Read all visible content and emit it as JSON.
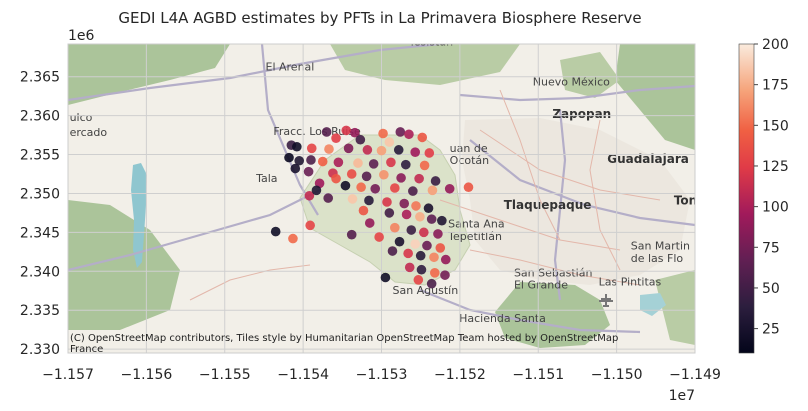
{
  "chart_data": {
    "type": "scatter",
    "title": "GEDI L4A AGBD estimates by PFTs in La Primavera Biosphere Reserve",
    "xlabel": "",
    "ylabel": "",
    "xlim": [
      -11570000,
      -11490000
    ],
    "ylim": [
      2329500,
      2369200
    ],
    "x_ticks": [
      -11570000,
      -11560000,
      -11550000,
      -11540000,
      -11530000,
      -11520000,
      -11510000,
      -11500000,
      -11490000
    ],
    "x_tick_labels": [
      "−1.157",
      "−1.156",
      "−1.155",
      "−1.154",
      "−1.153",
      "−1.152",
      "−1.151",
      "−1.150",
      "−1.149"
    ],
    "x_offset_label": "1e7",
    "y_ticks": [
      2330000,
      2335000,
      2340000,
      2345000,
      2350000,
      2355000,
      2360000,
      2365000
    ],
    "y_tick_labels": [
      "2.330",
      "2.335",
      "2.340",
      "2.345",
      "2.350",
      "2.355",
      "2.360",
      "2.365"
    ],
    "y_offset_label": "1e6",
    "colorbar": {
      "min": 10,
      "max": 200,
      "ticks": [
        25,
        50,
        75,
        100,
        125,
        150,
        175,
        200
      ],
      "tick_labels": [
        "25",
        "50",
        "75",
        "100",
        "125",
        "150",
        "175",
        "200"
      ],
      "colormap": "rocket"
    },
    "grid": true,
    "basemap_attribution": "(C) OpenStreetMap contributors, Tiles style by Humanitarian OpenStreetMap Team hosted by OpenStreetMap France",
    "place_labels": [
      {
        "text": "Tesistán",
        "x": -11526500,
        "y": 2369000
      },
      {
        "text": "El Arenal",
        "x": -11544800,
        "y": 2365800
      },
      {
        "text": "Nuevo México",
        "x": -11510700,
        "y": 2363900
      },
      {
        "text": "Zapopan",
        "x": -11508200,
        "y": 2359700
      },
      {
        "text": "ulco",
        "x": -11569800,
        "y": 2359300
      },
      {
        "text": "ercado",
        "x": -11569800,
        "y": 2357400
      },
      {
        "text": "Fracc. Los Ruise",
        "x": -11543800,
        "y": 2357500
      },
      {
        "text": "Guadalajara",
        "x": -11501200,
        "y": 2353900
      },
      {
        "text": "uan de",
        "x": -11521300,
        "y": 2355300
      },
      {
        "text": "Ocotán",
        "x": -11521300,
        "y": 2353800
      },
      {
        "text": "Tala",
        "x": -11546000,
        "y": 2351500
      },
      {
        "text": "Tlaquepaque",
        "x": -11514400,
        "y": 2348000
      },
      {
        "text": "Tona",
        "x": -11492700,
        "y": 2348600
      },
      {
        "text": "Santa Ana",
        "x": -11521500,
        "y": 2345600
      },
      {
        "text": "Tepetitlán",
        "x": -11521500,
        "y": 2344000
      },
      {
        "text": "San Martin",
        "x": -11498200,
        "y": 2342800
      },
      {
        "text": "de las Flo",
        "x": -11498200,
        "y": 2341200
      },
      {
        "text": "San Sebastián",
        "x": -11513100,
        "y": 2339300
      },
      {
        "text": "El Grande",
        "x": -11513100,
        "y": 2337800
      },
      {
        "text": "Las Pintitas",
        "x": -11502300,
        "y": 2338200
      },
      {
        "text": "San Agustín",
        "x": -11528600,
        "y": 2337100
      },
      {
        "text": "Hacienda Santa",
        "x": -11520100,
        "y": 2333500
      }
    ],
    "points": [
      [
        -11537000,
        2357900,
        60
      ],
      [
        -11534500,
        2358100,
        120
      ],
      [
        -11533400,
        2357800,
        90
      ],
      [
        -11529800,
        2357700,
        150
      ],
      [
        -11527600,
        2357900,
        70
      ],
      [
        -11526500,
        2357600,
        100
      ],
      [
        -11524800,
        2357200,
        140
      ],
      [
        -11541500,
        2356200,
        45
      ],
      [
        -11540800,
        2356000,
        20
      ],
      [
        -11538900,
        2355800,
        130
      ],
      [
        -11536700,
        2355700,
        160
      ],
      [
        -11534200,
        2355800,
        80
      ],
      [
        -11531800,
        2355600,
        110
      ],
      [
        -11530000,
        2355500,
        170
      ],
      [
        -11527800,
        2355600,
        35
      ],
      [
        -11525700,
        2355300,
        95
      ],
      [
        -11523900,
        2355200,
        125
      ],
      [
        -11541800,
        2354600,
        15
      ],
      [
        -11540500,
        2354200,
        30
      ],
      [
        -11539000,
        2354300,
        55
      ],
      [
        -11537500,
        2354100,
        145
      ],
      [
        -11535500,
        2354000,
        100
      ],
      [
        -11533000,
        2353900,
        180
      ],
      [
        -11531000,
        2353800,
        65
      ],
      [
        -11528800,
        2354000,
        120
      ],
      [
        -11526900,
        2353700,
        40
      ],
      [
        -11524500,
        2353600,
        150
      ],
      [
        -11541000,
        2353200,
        25
      ],
      [
        -11539300,
        2352800,
        70
      ],
      [
        -11536200,
        2352600,
        115
      ],
      [
        -11533800,
        2352500,
        135
      ],
      [
        -11531900,
        2352200,
        60
      ],
      [
        -11529700,
        2352400,
        165
      ],
      [
        -11527500,
        2352000,
        85
      ],
      [
        -11525200,
        2351900,
        110
      ],
      [
        -11523100,
        2351600,
        45
      ],
      [
        -11537900,
        2351300,
        95
      ],
      [
        -11534600,
        2351000,
        20
      ],
      [
        -11532600,
        2350800,
        150
      ],
      [
        -11530800,
        2350600,
        75
      ],
      [
        -11528300,
        2350700,
        130
      ],
      [
        -11526000,
        2350300,
        55
      ],
      [
        -11523500,
        2350400,
        170
      ],
      [
        -11521300,
        2350600,
        90
      ],
      [
        -11518900,
        2350800,
        140
      ],
      [
        -11539200,
        2349700,
        110
      ],
      [
        -11536800,
        2349400,
        60
      ],
      [
        -11533700,
        2349300,
        185
      ],
      [
        -11531600,
        2349100,
        35
      ],
      [
        -11529300,
        2348900,
        120
      ],
      [
        -11527100,
        2348700,
        80
      ],
      [
        -11525600,
        2348400,
        155
      ],
      [
        -11524000,
        2348100,
        25
      ],
      [
        -11532300,
        2347800,
        140
      ],
      [
        -11529000,
        2347500,
        50
      ],
      [
        -11526800,
        2347300,
        100
      ],
      [
        -11525100,
        2347000,
        175
      ],
      [
        -11523600,
        2346700,
        65
      ],
      [
        -11522300,
        2346500,
        30
      ],
      [
        -11543500,
        2345100,
        20
      ],
      [
        -11539100,
        2345900,
        130
      ],
      [
        -11531500,
        2346200,
        90
      ],
      [
        -11528300,
        2345600,
        160
      ],
      [
        -11526200,
        2345300,
        45
      ],
      [
        -11524600,
        2345000,
        115
      ],
      [
        -11522800,
        2344800,
        85
      ],
      [
        -11541300,
        2344200,
        150
      ],
      [
        -11533800,
        2344700,
        60
      ],
      [
        -11530300,
        2344400,
        130
      ],
      [
        -11527700,
        2343800,
        25
      ],
      [
        -11525700,
        2343500,
        190
      ],
      [
        -11524200,
        2343300,
        70
      ],
      [
        -11522500,
        2343000,
        140
      ],
      [
        -11528600,
        2342600,
        55
      ],
      [
        -11526600,
        2342300,
        120
      ],
      [
        -11525000,
        2342000,
        35
      ],
      [
        -11523300,
        2341800,
        160
      ],
      [
        -11521800,
        2341500,
        90
      ],
      [
        -11526400,
        2340500,
        110
      ],
      [
        -11524900,
        2340200,
        40
      ],
      [
        -11523200,
        2339800,
        150
      ],
      [
        -11521900,
        2339500,
        75
      ],
      [
        -11529500,
        2339200,
        20
      ],
      [
        -11525300,
        2338900,
        130
      ],
      [
        -11523600,
        2338400,
        55
      ],
      [
        -11535800,
        2351900,
        140
      ],
      [
        -11538300,
        2350400,
        30
      ],
      [
        -11529000,
        2356600,
        185
      ],
      [
        -11532700,
        2356900,
        50
      ],
      [
        -11535800,
        2357100,
        125
      ]
    ]
  }
}
